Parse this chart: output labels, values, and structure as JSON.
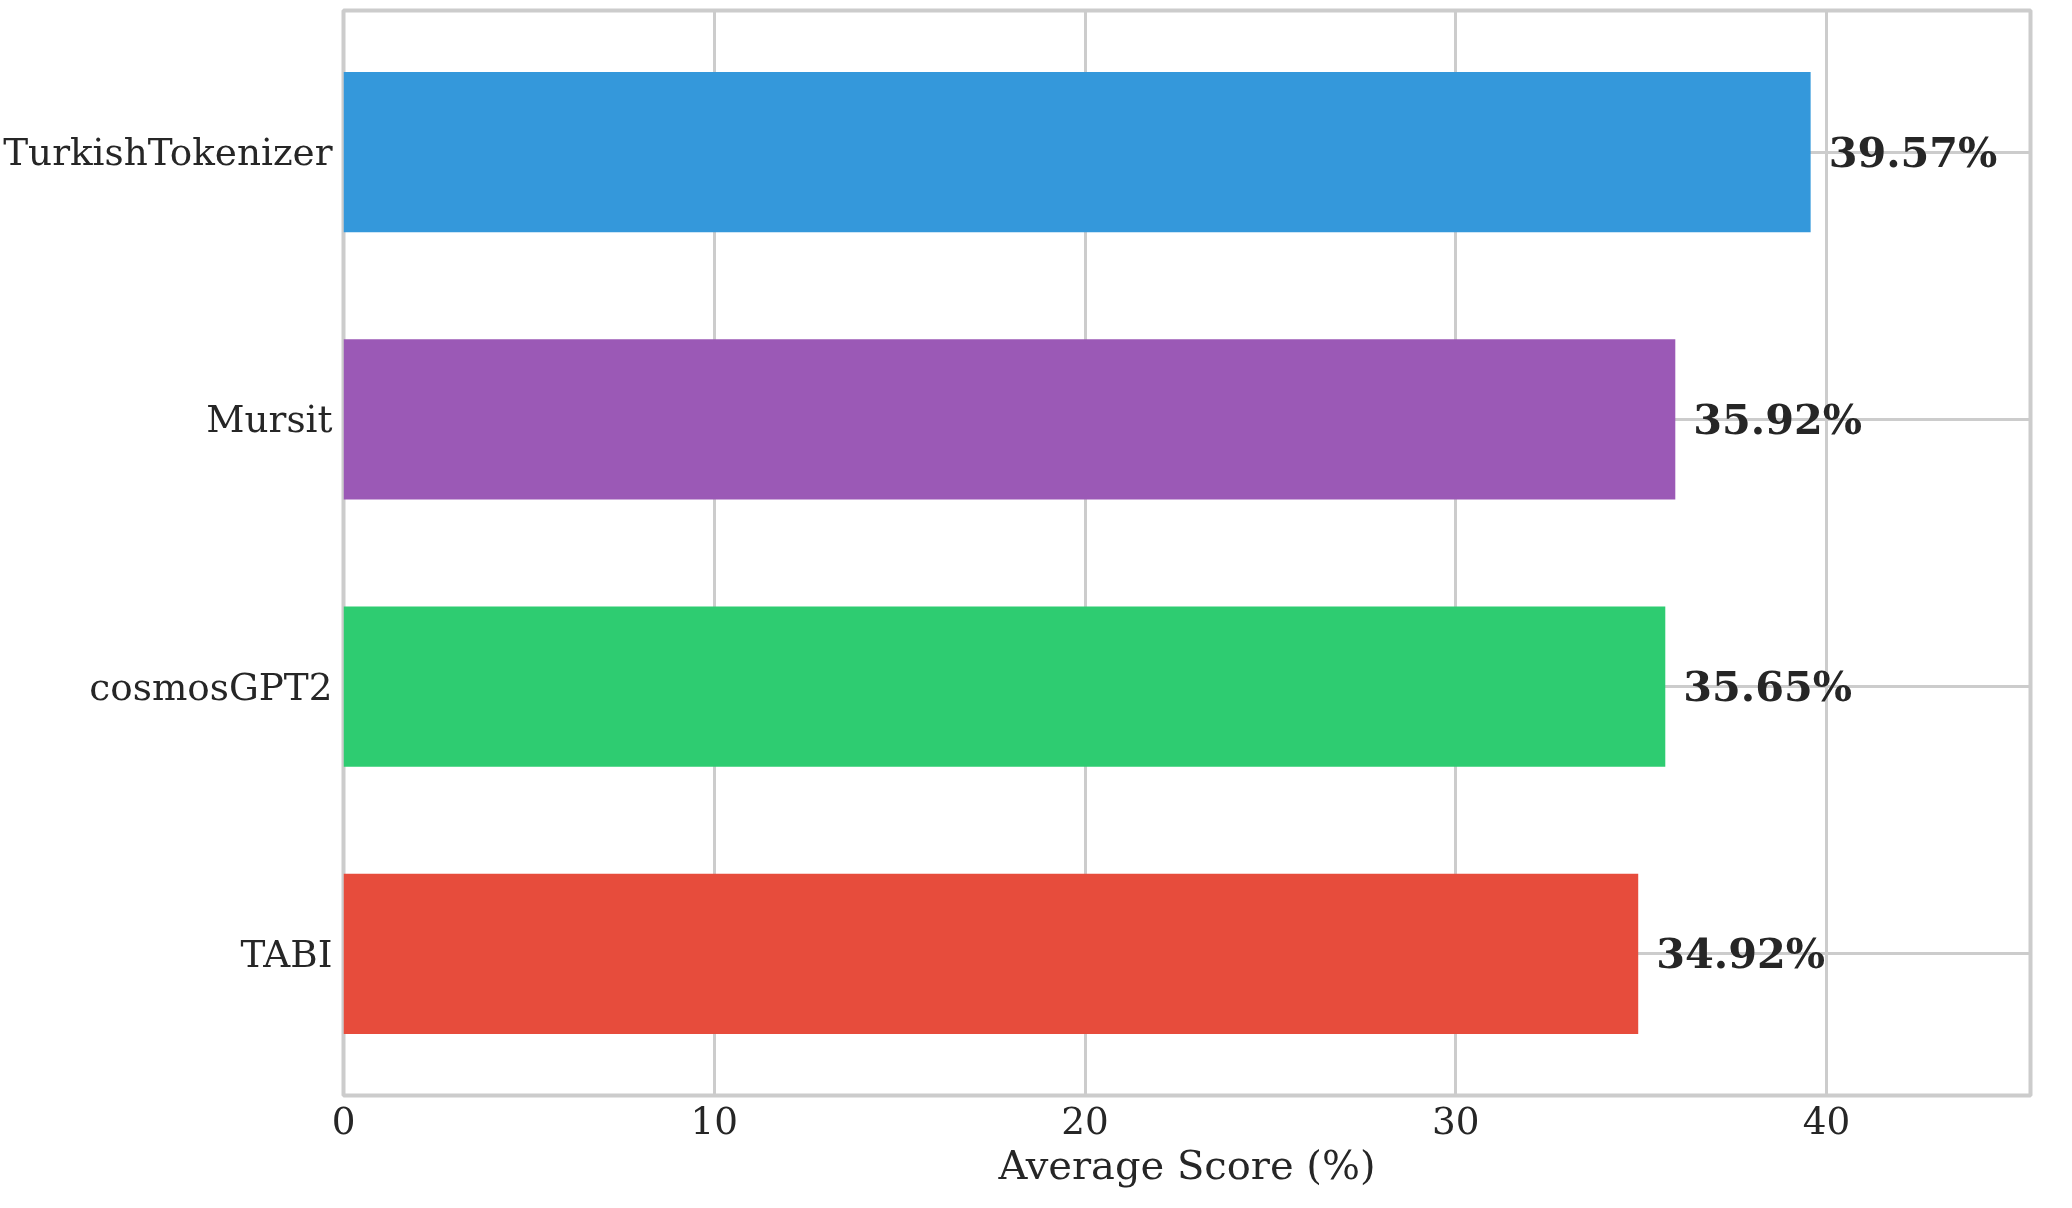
{
  "chart_data": {
    "type": "bar",
    "orientation": "horizontal",
    "categories": [
      "TurkishTokenizer",
      "Mursit",
      "cosmosGPT2",
      "TABI"
    ],
    "values": [
      39.57,
      35.92,
      35.65,
      34.92
    ],
    "colors": [
      "#3498db",
      "#9b59b6",
      "#2ecc71",
      "#e74c3c"
    ],
    "value_labels": [
      "39.57%",
      "35.92%",
      "35.65%",
      "34.92%"
    ],
    "xlabel": "Average Score (%)",
    "xlim": [
      0,
      45.5
    ],
    "xticks": [
      0,
      10,
      20,
      30,
      40
    ],
    "grid": true
  }
}
